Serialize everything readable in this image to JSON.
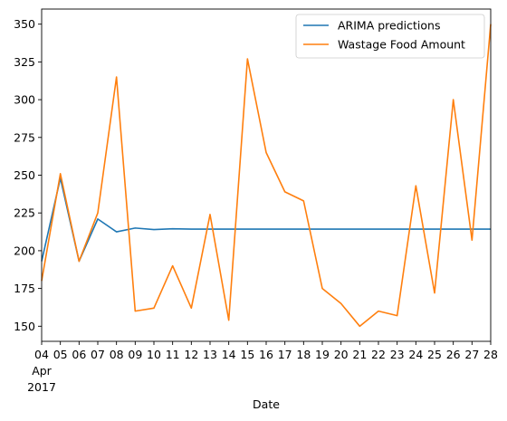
{
  "chart_data": {
    "type": "line",
    "title": "",
    "xlabel": "Date",
    "ylabel": "",
    "x": [
      "04",
      "05",
      "06",
      "07",
      "08",
      "09",
      "10",
      "11",
      "12",
      "13",
      "14",
      "15",
      "16",
      "17",
      "18",
      "19",
      "20",
      "21",
      "22",
      "23",
      "24",
      "25",
      "26",
      "27",
      "28"
    ],
    "x_sublabels": {
      "month": "Apr",
      "year": "2017"
    },
    "ylim": [
      140,
      360
    ],
    "yticks": [
      150,
      175,
      200,
      225,
      250,
      275,
      300,
      325,
      350
    ],
    "grid": false,
    "legend_position": "top-right",
    "series": [
      {
        "name": "ARIMA predictions",
        "color": "#1f77b4",
        "values": [
          193,
          248,
          193,
          221,
          212.5,
          215,
          214,
          214.5,
          214.3,
          214.3,
          214.3,
          214.3,
          214.3,
          214.3,
          214.3,
          214.3,
          214.3,
          214.3,
          214.3,
          214.3,
          214.3,
          214.3,
          214.3,
          214.3,
          214.3
        ]
      },
      {
        "name": "Wastage Food Amount",
        "color": "#ff7f0e",
        "values": [
          180,
          251,
          193,
          225,
          315,
          160,
          162,
          190,
          162,
          224,
          154,
          327,
          265,
          239,
          233,
          175,
          165,
          150,
          160,
          157,
          243,
          172,
          300,
          207,
          350
        ]
      }
    ]
  }
}
